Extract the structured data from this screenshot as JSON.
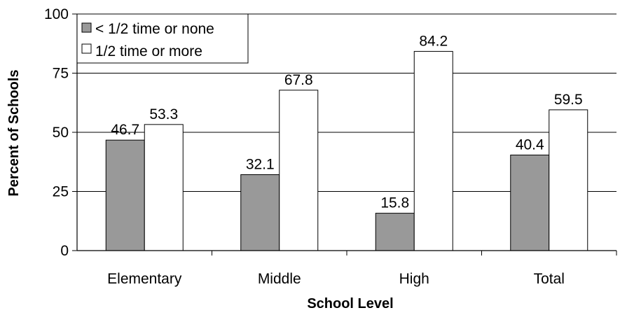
{
  "chart_data": {
    "type": "bar",
    "title": "",
    "xlabel": "School Level",
    "ylabel": "Percent of Schools",
    "ylim": [
      0,
      100
    ],
    "yticks": [
      0,
      25,
      50,
      75,
      100
    ],
    "categories": [
      "Elementary",
      "Middle",
      "High",
      "Total"
    ],
    "series": [
      {
        "name": "< 1/2 time or none",
        "values": [
          46.7,
          32.1,
          15.8,
          40.4
        ],
        "color": "#999999"
      },
      {
        "name": "1/2 time or more",
        "values": [
          53.3,
          67.8,
          84.2,
          59.5
        ],
        "color": "#ffffff"
      }
    ],
    "grid": true,
    "legend": "top-left"
  }
}
